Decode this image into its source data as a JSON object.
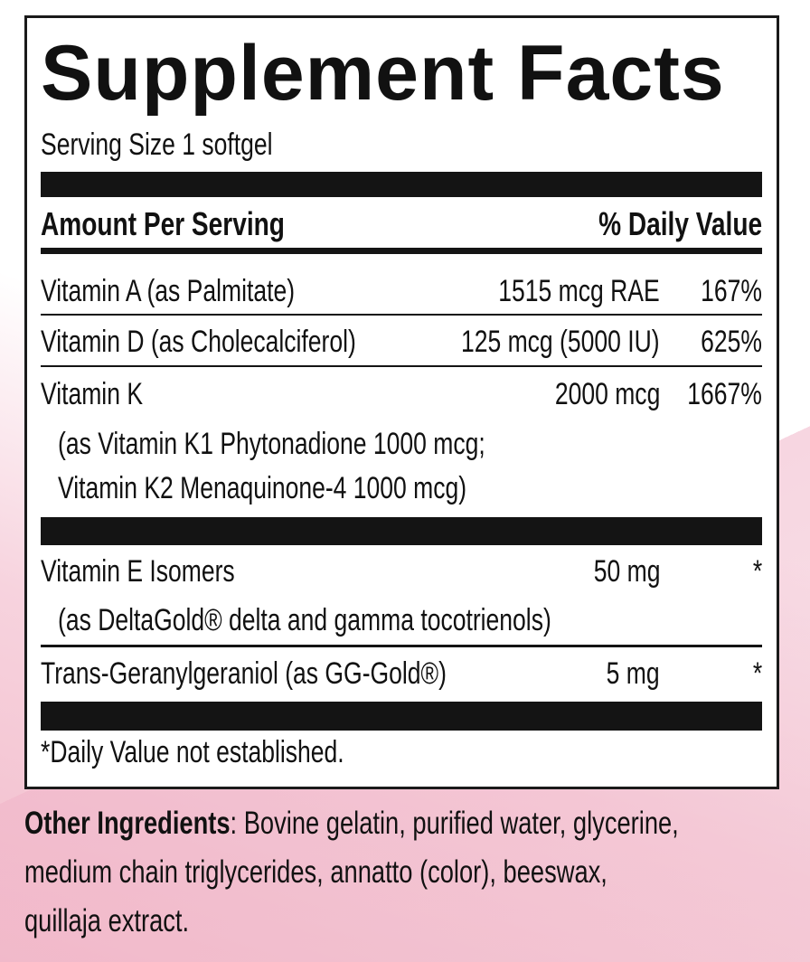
{
  "title": "Supplement Facts",
  "serving_size": "Serving Size 1 softgel",
  "header": {
    "amount": "Amount Per Serving",
    "daily_value": "% Daily Value"
  },
  "rows": [
    {
      "name": "Vitamin A (as Palmitate)",
      "amount": "1515 mcg RAE",
      "dv": "167%"
    },
    {
      "name": "Vitamin D (as Cholecalciferol)",
      "amount": "125 mcg (5000 IU)",
      "dv": "625%"
    },
    {
      "name": "Vitamin K",
      "amount": "2000 mcg",
      "dv": "1667%",
      "sub": [
        "(as Vitamin K1 Phytonadione 1000 mcg;",
        "Vitamin K2 Menaquinone-4 1000 mcg)"
      ]
    },
    {
      "name": "Vitamin E Isomers",
      "amount": "50 mg",
      "dv": "*",
      "sub": [
        "(as DeltaGold® delta and gamma tocotrienols)"
      ]
    },
    {
      "name": "Trans-Geranylgeraniol (as GG-Gold®)",
      "amount": "5 mg",
      "dv": "*"
    }
  ],
  "footnote": "*Daily Value not established.",
  "other_ingredients": {
    "label": "Other Ingredients",
    "text": [
      ": Bovine gelatin, purified water, glycerine,",
      "medium chain triglycerides, annatto (color), beeswax,",
      "quillaja extract."
    ]
  }
}
